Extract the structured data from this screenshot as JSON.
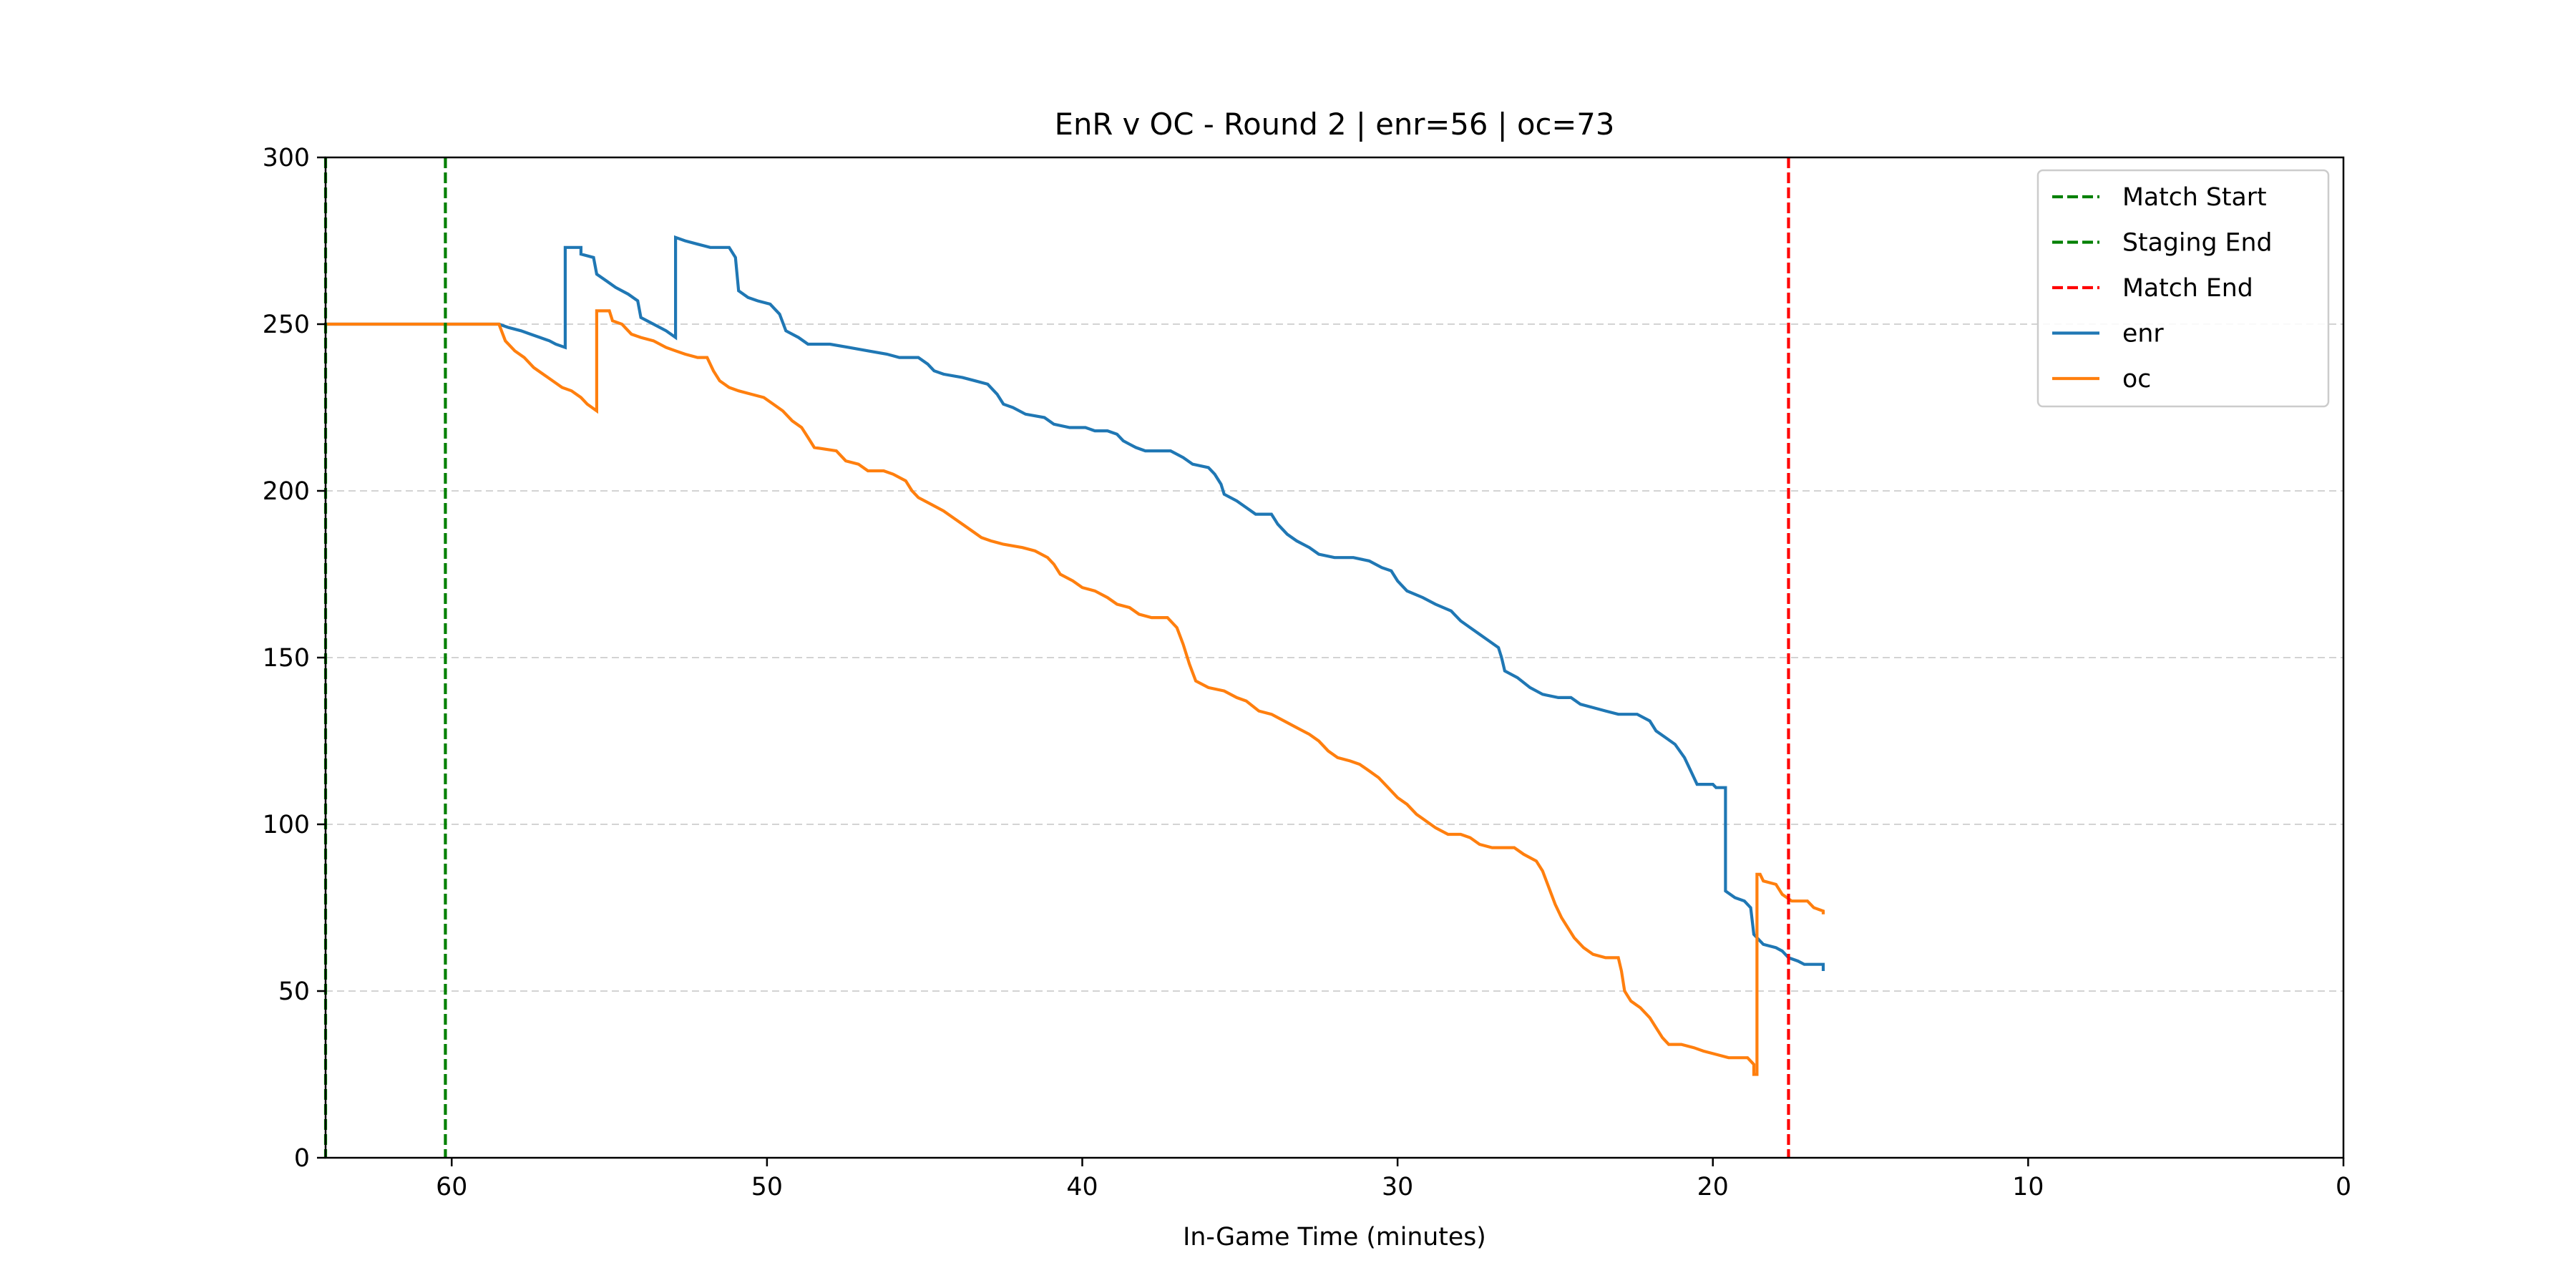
{
  "chart_data": {
    "type": "line",
    "title": "EnR v OC - Round 2 | enr=56 | oc=73",
    "xlabel": "In-Game Time (minutes)",
    "ylabel": "",
    "xlim": [
      64,
      0
    ],
    "ylim": [
      0,
      300
    ],
    "x_inverted": true,
    "xticks": [
      60,
      50,
      40,
      30,
      20,
      10,
      0
    ],
    "yticks": [
      0,
      50,
      100,
      150,
      200,
      250,
      300
    ],
    "grid": {
      "y": true,
      "x": false,
      "style": "dashed",
      "color": "#d3d3d3"
    },
    "legend_position": "upper-right",
    "legend": [
      {
        "label": "Match Start",
        "color": "#008000",
        "style": "dashed"
      },
      {
        "label": "Staging End",
        "color": "#008000",
        "style": "dashed"
      },
      {
        "label": "Match End",
        "color": "#ff0000",
        "style": "dashed"
      },
      {
        "label": "enr",
        "color": "#1f77b4",
        "style": "solid"
      },
      {
        "label": "oc",
        "color": "#ff7f0e",
        "style": "solid"
      }
    ],
    "vlines": [
      {
        "name": "Match Start",
        "x": 64,
        "color": "#008000"
      },
      {
        "name": "Staging End",
        "x": 60.2,
        "color": "#008000"
      },
      {
        "name": "Match End",
        "x": 17.6,
        "color": "#ff0000"
      }
    ],
    "series": [
      {
        "name": "enr",
        "color": "#1f77b4",
        "points": [
          [
            64,
            250
          ],
          [
            58.5,
            250
          ],
          [
            58.2,
            249
          ],
          [
            57.8,
            248
          ],
          [
            57.5,
            247
          ],
          [
            57.2,
            246
          ],
          [
            56.9,
            245
          ],
          [
            56.7,
            244
          ],
          [
            56.4,
            243
          ],
          [
            56.4,
            273
          ],
          [
            55.9,
            273
          ],
          [
            55.9,
            271
          ],
          [
            55.5,
            270
          ],
          [
            55.4,
            265
          ],
          [
            55.1,
            263
          ],
          [
            54.8,
            261
          ],
          [
            54.4,
            259
          ],
          [
            54.1,
            257
          ],
          [
            54.0,
            252
          ],
          [
            53.6,
            250
          ],
          [
            53.2,
            248
          ],
          [
            52.9,
            246
          ],
          [
            52.9,
            276
          ],
          [
            52.6,
            275
          ],
          [
            52.2,
            274
          ],
          [
            51.8,
            273
          ],
          [
            51.2,
            273
          ],
          [
            51.0,
            270
          ],
          [
            50.9,
            260
          ],
          [
            50.6,
            258
          ],
          [
            50.3,
            257
          ],
          [
            49.9,
            256
          ],
          [
            49.6,
            253
          ],
          [
            49.4,
            248
          ],
          [
            49.0,
            246
          ],
          [
            48.7,
            244
          ],
          [
            48.0,
            244
          ],
          [
            47.4,
            243
          ],
          [
            46.8,
            242
          ],
          [
            46.2,
            241
          ],
          [
            45.8,
            240
          ],
          [
            45.2,
            240
          ],
          [
            44.9,
            238
          ],
          [
            44.7,
            236
          ],
          [
            44.4,
            235
          ],
          [
            43.8,
            234
          ],
          [
            43.4,
            233
          ],
          [
            43.0,
            232
          ],
          [
            42.7,
            229
          ],
          [
            42.5,
            226
          ],
          [
            42.2,
            225
          ],
          [
            41.8,
            223
          ],
          [
            41.2,
            222
          ],
          [
            40.9,
            220
          ],
          [
            40.4,
            219
          ],
          [
            39.9,
            219
          ],
          [
            39.6,
            218
          ],
          [
            39.2,
            218
          ],
          [
            38.9,
            217
          ],
          [
            38.7,
            215
          ],
          [
            38.5,
            214
          ],
          [
            38.3,
            213
          ],
          [
            38.0,
            212
          ],
          [
            37.2,
            212
          ],
          [
            36.8,
            210
          ],
          [
            36.5,
            208
          ],
          [
            36.0,
            207
          ],
          [
            35.8,
            205
          ],
          [
            35.6,
            202
          ],
          [
            35.5,
            199
          ],
          [
            35.1,
            197
          ],
          [
            34.8,
            195
          ],
          [
            34.5,
            193
          ],
          [
            34.0,
            193
          ],
          [
            33.8,
            190
          ],
          [
            33.5,
            187
          ],
          [
            33.2,
            185
          ],
          [
            32.8,
            183
          ],
          [
            32.5,
            181
          ],
          [
            32.0,
            180
          ],
          [
            31.4,
            180
          ],
          [
            30.9,
            179
          ],
          [
            30.5,
            177
          ],
          [
            30.2,
            176
          ],
          [
            30.0,
            173
          ],
          [
            29.7,
            170
          ],
          [
            29.2,
            168
          ],
          [
            28.8,
            166
          ],
          [
            28.3,
            164
          ],
          [
            28.0,
            161
          ],
          [
            27.7,
            159
          ],
          [
            27.4,
            157
          ],
          [
            27.1,
            155
          ],
          [
            26.8,
            153
          ],
          [
            26.7,
            150
          ],
          [
            26.6,
            146
          ],
          [
            26.2,
            144
          ],
          [
            25.8,
            141
          ],
          [
            25.4,
            139
          ],
          [
            24.9,
            138
          ],
          [
            24.5,
            138
          ],
          [
            24.2,
            136
          ],
          [
            23.8,
            135
          ],
          [
            23.4,
            134
          ],
          [
            23.0,
            133
          ],
          [
            22.4,
            133
          ],
          [
            22.0,
            131
          ],
          [
            21.8,
            128
          ],
          [
            21.5,
            126
          ],
          [
            21.2,
            124
          ],
          [
            20.9,
            120
          ],
          [
            20.7,
            116
          ],
          [
            20.5,
            112
          ],
          [
            20.0,
            112
          ],
          [
            19.9,
            111
          ],
          [
            19.6,
            111
          ],
          [
            19.6,
            80
          ],
          [
            19.3,
            78
          ],
          [
            19.0,
            77
          ],
          [
            18.8,
            75
          ],
          [
            18.7,
            67
          ],
          [
            18.4,
            64
          ],
          [
            18.0,
            63
          ],
          [
            17.8,
            62
          ],
          [
            17.6,
            60
          ],
          [
            17.3,
            59
          ],
          [
            17.1,
            58
          ],
          [
            16.8,
            58
          ],
          [
            16.5,
            58
          ],
          [
            16.5,
            56
          ]
        ]
      },
      {
        "name": "oc",
        "color": "#ff7f0e",
        "points": [
          [
            64,
            250
          ],
          [
            58.5,
            250
          ],
          [
            58.3,
            245
          ],
          [
            58.0,
            242
          ],
          [
            57.7,
            240
          ],
          [
            57.4,
            237
          ],
          [
            57.1,
            235
          ],
          [
            56.8,
            233
          ],
          [
            56.5,
            231
          ],
          [
            56.2,
            230
          ],
          [
            55.9,
            228
          ],
          [
            55.7,
            226
          ],
          [
            55.4,
            224
          ],
          [
            55.4,
            254
          ],
          [
            55.0,
            254
          ],
          [
            54.9,
            251
          ],
          [
            54.6,
            250
          ],
          [
            54.3,
            247
          ],
          [
            54.0,
            246
          ],
          [
            53.6,
            245
          ],
          [
            53.2,
            243
          ],
          [
            52.9,
            242
          ],
          [
            52.6,
            241
          ],
          [
            52.2,
            240
          ],
          [
            51.9,
            240
          ],
          [
            51.7,
            236
          ],
          [
            51.5,
            233
          ],
          [
            51.2,
            231
          ],
          [
            50.9,
            230
          ],
          [
            50.5,
            229
          ],
          [
            50.1,
            228
          ],
          [
            49.8,
            226
          ],
          [
            49.5,
            224
          ],
          [
            49.2,
            221
          ],
          [
            48.9,
            219
          ],
          [
            48.7,
            216
          ],
          [
            48.5,
            213
          ],
          [
            47.8,
            212
          ],
          [
            47.5,
            209
          ],
          [
            47.1,
            208
          ],
          [
            46.8,
            206
          ],
          [
            46.3,
            206
          ],
          [
            46.0,
            205
          ],
          [
            45.6,
            203
          ],
          [
            45.4,
            200
          ],
          [
            45.2,
            198
          ],
          [
            44.8,
            196
          ],
          [
            44.4,
            194
          ],
          [
            44.1,
            192
          ],
          [
            43.8,
            190
          ],
          [
            43.5,
            188
          ],
          [
            43.2,
            186
          ],
          [
            42.9,
            185
          ],
          [
            42.5,
            184
          ],
          [
            41.9,
            183
          ],
          [
            41.5,
            182
          ],
          [
            41.1,
            180
          ],
          [
            40.9,
            178
          ],
          [
            40.7,
            175
          ],
          [
            40.3,
            173
          ],
          [
            40.0,
            171
          ],
          [
            39.6,
            170
          ],
          [
            39.2,
            168
          ],
          [
            38.9,
            166
          ],
          [
            38.5,
            165
          ],
          [
            38.2,
            163
          ],
          [
            37.8,
            162
          ],
          [
            37.3,
            162
          ],
          [
            37.0,
            159
          ],
          [
            36.8,
            154
          ],
          [
            36.6,
            148
          ],
          [
            36.4,
            143
          ],
          [
            36.0,
            141
          ],
          [
            35.5,
            140
          ],
          [
            35.1,
            138
          ],
          [
            34.8,
            137
          ],
          [
            34.4,
            134
          ],
          [
            34.0,
            133
          ],
          [
            33.6,
            131
          ],
          [
            33.2,
            129
          ],
          [
            32.8,
            127
          ],
          [
            32.5,
            125
          ],
          [
            32.2,
            122
          ],
          [
            31.9,
            120
          ],
          [
            31.5,
            119
          ],
          [
            31.2,
            118
          ],
          [
            30.9,
            116
          ],
          [
            30.6,
            114
          ],
          [
            30.3,
            111
          ],
          [
            30.0,
            108
          ],
          [
            29.7,
            106
          ],
          [
            29.4,
            103
          ],
          [
            29.1,
            101
          ],
          [
            28.8,
            99
          ],
          [
            28.4,
            97
          ],
          [
            28.0,
            97
          ],
          [
            27.7,
            96
          ],
          [
            27.4,
            94
          ],
          [
            27.0,
            93
          ],
          [
            26.3,
            93
          ],
          [
            26.0,
            91
          ],
          [
            25.6,
            89
          ],
          [
            25.4,
            86
          ],
          [
            25.2,
            81
          ],
          [
            25.0,
            76
          ],
          [
            24.8,
            72
          ],
          [
            24.6,
            69
          ],
          [
            24.4,
            66
          ],
          [
            24.1,
            63
          ],
          [
            23.8,
            61
          ],
          [
            23.4,
            60
          ],
          [
            23.0,
            60
          ],
          [
            22.9,
            56
          ],
          [
            22.8,
            50
          ],
          [
            22.6,
            47
          ],
          [
            22.3,
            45
          ],
          [
            22.0,
            42
          ],
          [
            21.8,
            39
          ],
          [
            21.6,
            36
          ],
          [
            21.4,
            34
          ],
          [
            21.0,
            34
          ],
          [
            20.6,
            33
          ],
          [
            20.3,
            32
          ],
          [
            19.9,
            31
          ],
          [
            19.5,
            30
          ],
          [
            18.9,
            30
          ],
          [
            18.7,
            28
          ],
          [
            18.7,
            25
          ],
          [
            18.6,
            25
          ],
          [
            18.6,
            85
          ],
          [
            18.5,
            85
          ],
          [
            18.4,
            83
          ],
          [
            18.0,
            82
          ],
          [
            17.8,
            79
          ],
          [
            17.5,
            77
          ],
          [
            17.0,
            77
          ],
          [
            16.8,
            75
          ],
          [
            16.5,
            74
          ],
          [
            16.5,
            73
          ]
        ]
      }
    ]
  }
}
